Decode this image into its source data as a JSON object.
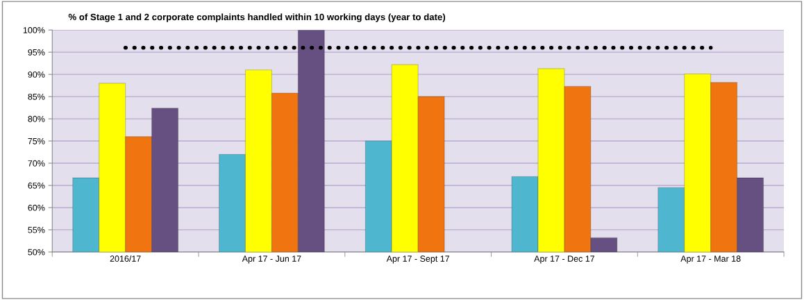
{
  "chart_data": {
    "type": "bar",
    "title": "% of Stage 1 and 2 corporate complaints handled within 10 working days (year to date)",
    "categories": [
      "2016/17",
      "Apr 17 - Jun 17",
      "Apr 17 - Sept 17",
      "Apr 17 - Dec 17",
      "Apr 17 - Mar 18"
    ],
    "series": [
      {
        "color": "#4fb6d0",
        "values": [
          66.7,
          72,
          75,
          67,
          64.5
        ]
      },
      {
        "color": "#ffff00",
        "values": [
          88,
          91,
          92.2,
          91.3,
          90.1
        ]
      },
      {
        "color": "#f07510",
        "values": [
          76,
          85.8,
          85,
          87.3,
          88.2
        ]
      },
      {
        "color": "#665082",
        "values": [
          82.4,
          100,
          null,
          53.2,
          66.7
        ]
      },
      {
        "type": "line",
        "color": "#000000",
        "line_style": "dotted",
        "values": [
          96,
          96,
          96,
          96,
          96
        ]
      }
    ],
    "ylim": [
      50,
      100
    ],
    "yticks": [
      {
        "value": 50,
        "label": "50%"
      },
      {
        "value": 55,
        "label": "55%"
      },
      {
        "value": 60,
        "label": "60%"
      },
      {
        "value": 65,
        "label": "65%"
      },
      {
        "value": 70,
        "label": "70%"
      },
      {
        "value": 75,
        "label": "75%"
      },
      {
        "value": 80,
        "label": "80%"
      },
      {
        "value": 85,
        "label": "85%"
      },
      {
        "value": 90,
        "label": "90%"
      },
      {
        "value": 95,
        "label": "95%"
      },
      {
        "value": 100,
        "label": "100%"
      }
    ],
    "grid": "y"
  }
}
